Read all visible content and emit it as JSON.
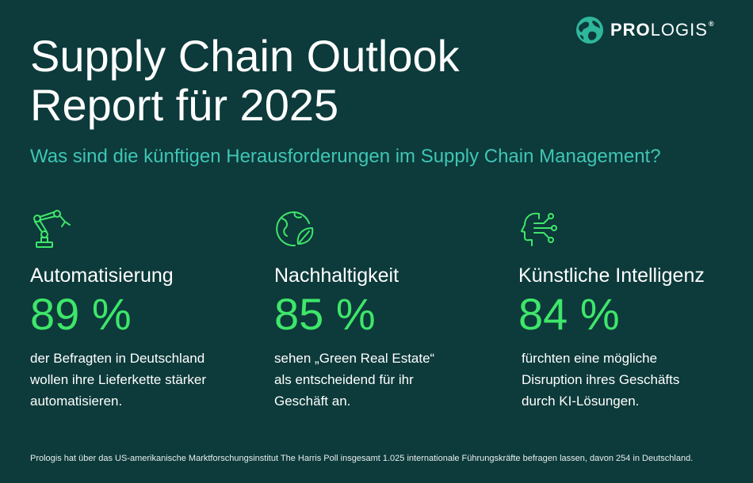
{
  "brand": {
    "name_bold": "PRO",
    "name_rest": "LOGIS",
    "registered": "®",
    "colors": {
      "background": "#0d3a3a",
      "accent_green": "#3ee66a",
      "accent_teal": "#3ec6b6"
    }
  },
  "title_line1": "Supply Chain Outlook",
  "title_line2": "Report für 2025",
  "subtitle": "Was sind die künftigen Herausforderungen im Supply Chain Management?",
  "columns": [
    {
      "icon": "robot-arm-icon",
      "heading": "Automatisierung",
      "stat": "89 %",
      "desc_lines": [
        "der Befragten in Deutschland",
        "wollen ihre Lieferkette stärker",
        "automatisieren."
      ]
    },
    {
      "icon": "globe-leaf-icon",
      "heading": "Nachhaltigkeit",
      "stat": "85 %",
      "desc_lines": [
        "sehen „Green Real Estate“",
        "als entscheidend für ihr",
        "Geschäft an."
      ]
    },
    {
      "icon": "ai-head-icon",
      "heading": "Künstliche Intelligenz",
      "stat": "84 %",
      "desc_lines": [
        "fürchten eine mögliche",
        "Disruption ihres Geschäfts",
        "durch KI-Lösungen."
      ]
    }
  ],
  "footnote": "Prologis hat über das US-amerikanische Marktforschungsinstitut The Harris Poll insgesamt 1.025 internationale Führungskräfte befragen lassen, davon 254 in Deutschland."
}
